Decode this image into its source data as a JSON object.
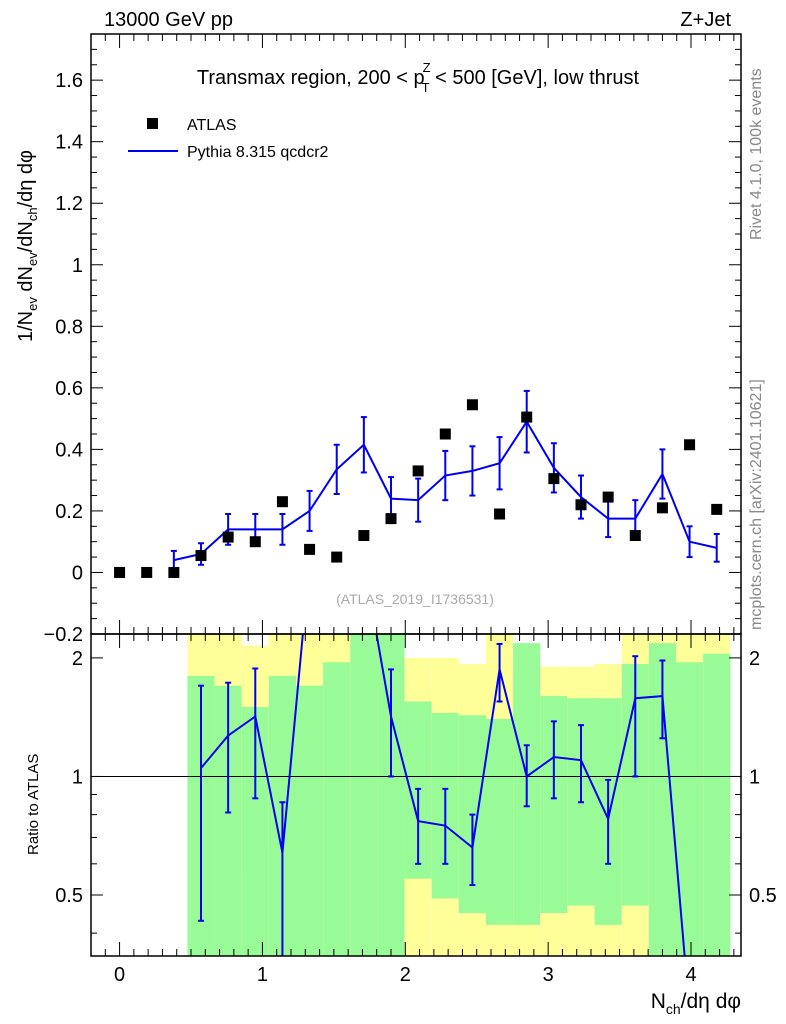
{
  "header": {
    "energy_label": "13000 GeV pp",
    "process_label": "Z+Jet"
  },
  "side_text": {
    "rivet": "Rivet 4.1.0,  100k events",
    "mcplots": "mcplots.cern.ch [arXiv:2401.10621]"
  },
  "chart_data": [
    {
      "type": "scatter",
      "panel": "main",
      "title_parts": {
        "pre": "Transmax region, 200 < p",
        "sup": "Z",
        "sub": "T",
        "post": " < 500 [GeV], low thrust"
      },
      "watermark": "(ATLAS_2019_I1736531)",
      "ylabel": "1/N_ev dN_ev/dN_ch/dη dφ",
      "xlim": [
        -0.2,
        4.35
      ],
      "ylim": [
        -0.2,
        1.75
      ],
      "y_ticks": [
        -0.2,
        0,
        0.2,
        0.4,
        0.6,
        0.8,
        1,
        1.2,
        1.4,
        1.6
      ],
      "y_tick_labels": [
        "−0.2",
        "0",
        "0.2",
        "0.4",
        "0.6",
        "0.8",
        "1",
        "1.2",
        "1.4",
        "1.6"
      ],
      "legend": {
        "position": "top-left",
        "entries": [
          "ATLAS",
          "Pythia 8.315 qcdcr2"
        ]
      },
      "series": [
        {
          "name": "ATLAS",
          "style": "markers",
          "color": "#000000",
          "x": [
            0,
            0.19,
            0.38,
            0.57,
            0.76,
            0.95,
            1.14,
            1.33,
            1.52,
            1.71,
            1.9,
            2.09,
            2.28,
            2.47,
            2.66,
            2.85,
            3.04,
            3.23,
            3.42,
            3.61,
            3.8,
            3.99,
            4.18
          ],
          "y": [
            0,
            0,
            0,
            0.055,
            0.115,
            0.1,
            0.23,
            0.075,
            0.05,
            0.12,
            0.175,
            0.33,
            0.45,
            0.545,
            0.19,
            0.505,
            0.305,
            0.22,
            0.245,
            0.12,
            0.21,
            0.415,
            0.205
          ]
        },
        {
          "name": "Pythia 8.315 qcdcr2",
          "style": "line",
          "color": "#0000ee",
          "x": [
            0.38,
            0.57,
            0.76,
            0.95,
            1.14,
            1.33,
            1.52,
            1.71,
            1.9,
            2.09,
            2.28,
            2.47,
            2.66,
            2.85,
            3.04,
            3.23,
            3.42,
            3.61,
            3.8,
            3.99,
            4.18
          ],
          "y": [
            0.04,
            0.06,
            0.14,
            0.14,
            0.14,
            0.2,
            0.335,
            0.415,
            0.24,
            0.235,
            0.315,
            0.33,
            0.355,
            0.49,
            0.34,
            0.245,
            0.175,
            0.175,
            0.32,
            0.1,
            0.08
          ],
          "yerr": [
            0.03,
            0.035,
            0.05,
            0.05,
            0.05,
            0.065,
            0.08,
            0.09,
            0.07,
            0.07,
            0.08,
            0.08,
            0.085,
            0.1,
            0.08,
            0.07,
            0.06,
            0.06,
            0.08,
            0.05,
            0.045
          ]
        }
      ]
    },
    {
      "type": "line",
      "panel": "ratio",
      "ylabel": "Ratio to ATLAS",
      "xlabel": "N_ch/dη dφ",
      "xlim": [
        -0.2,
        4.35
      ],
      "ylim": [
        0.35,
        2.3
      ],
      "scale": "log",
      "x_ticks": [
        0,
        1,
        2,
        3,
        4
      ],
      "x_tick_labels": [
        "0",
        "1",
        "2",
        "3",
        "4"
      ],
      "y_ticks": [
        0.5,
        1,
        2
      ],
      "y_tick_labels": [
        "0.5",
        "1",
        "2"
      ],
      "bands": {
        "bin_edges": [
          0.475,
          0.665,
          0.855,
          1.045,
          1.235,
          1.425,
          1.615,
          1.805,
          1.995,
          2.185,
          2.375,
          2.565,
          2.755,
          2.945,
          3.135,
          3.325,
          3.515,
          3.705,
          3.895,
          4.085,
          4.275
        ],
        "yellow_hi": [
          2.3,
          2.3,
          2.15,
          2.3,
          2.3,
          2.3,
          2.3,
          2.3,
          2.0,
          2.0,
          1.93,
          2.3,
          1.9,
          1.9,
          1.9,
          1.93,
          2.3,
          2.3,
          2.3,
          2.3
        ],
        "yellow_lo": [
          0.35,
          0.57,
          0.35,
          0.66,
          0.35,
          0.35,
          0.35,
          0.35,
          0.35,
          0.35,
          0.35,
          0.35,
          0.35,
          0.35,
          0.35,
          0.35,
          0.35,
          0.35,
          0.35,
          0.35
        ],
        "green_hi": [
          1.8,
          1.7,
          1.5,
          1.8,
          1.7,
          1.95,
          2.3,
          2.3,
          1.55,
          1.45,
          1.43,
          1.4,
          2.18,
          1.6,
          1.58,
          1.58,
          1.93,
          2.18,
          1.95,
          2.05
        ],
        "green_lo": [
          0.35,
          0.35,
          0.35,
          0.35,
          0.35,
          0.35,
          0.35,
          0.35,
          0.55,
          0.49,
          0.45,
          0.42,
          0.42,
          0.45,
          0.47,
          0.42,
          0.47,
          0.35,
          0.35,
          0.35
        ],
        "yellow_color": "#ffff9a",
        "green_color": "#98fb98"
      },
      "series": [
        {
          "name": "Pythia 8.315 qcdcr2 / ATLAS",
          "color": "#0000ee",
          "x": [
            0.57,
            0.76,
            0.95,
            1.14,
            1.33,
            1.71,
            1.9,
            2.09,
            2.28,
            2.47,
            2.66,
            2.85,
            3.04,
            3.23,
            3.42,
            3.61,
            3.8,
            3.99
          ],
          "y": [
            1.05,
            1.27,
            1.42,
            0.64,
            3.5,
            3.5,
            1.42,
            0.77,
            0.75,
            0.66,
            1.87,
            1.0,
            1.12,
            1.1,
            0.78,
            1.58,
            1.6,
            0.25
          ],
          "ylo": [
            0.43,
            0.81,
            0.88,
            0.3,
            null,
            null,
            1.0,
            0.6,
            0.6,
            0.53,
            1.55,
            0.84,
            0.88,
            0.86,
            0.6,
            1.0,
            1.25,
            null
          ],
          "yhi": [
            1.7,
            1.73,
            1.88,
            0.86,
            null,
            null,
            1.87,
            0.93,
            0.93,
            0.8,
            2.17,
            1.2,
            1.38,
            1.35,
            0.98,
            2.02,
            1.97,
            null
          ]
        }
      ]
    }
  ]
}
